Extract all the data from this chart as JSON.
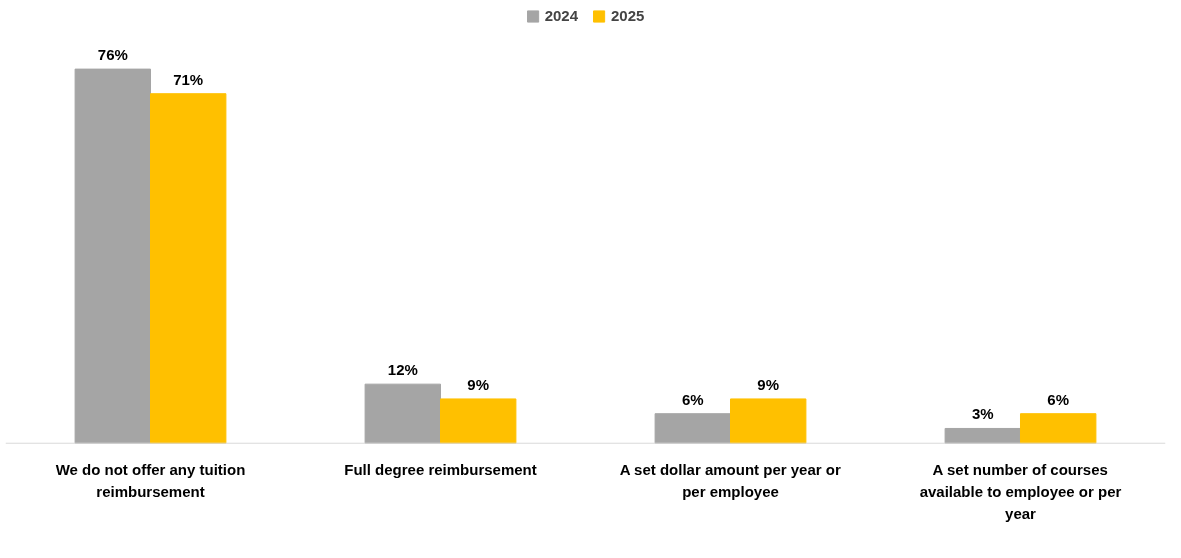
{
  "chart_data": {
    "type": "bar",
    "categories": [
      "We do not offer any tuition reimbursement",
      "Full degree reimbursement",
      "A set dollar amount per year or per employee",
      "A set number of courses available to employee or per year"
    ],
    "series": [
      {
        "name": "2024",
        "color": "#a5a5a5",
        "values": [
          76,
          12,
          6,
          3
        ],
        "value_labels": [
          "76%",
          "12%",
          "6%",
          "3%"
        ]
      },
      {
        "name": "2025",
        "color": "#ffc000",
        "values": [
          71,
          9,
          9,
          6
        ],
        "value_labels": [
          "71%",
          "9%",
          "9%",
          "6%"
        ]
      }
    ],
    "legend": "top"
  }
}
